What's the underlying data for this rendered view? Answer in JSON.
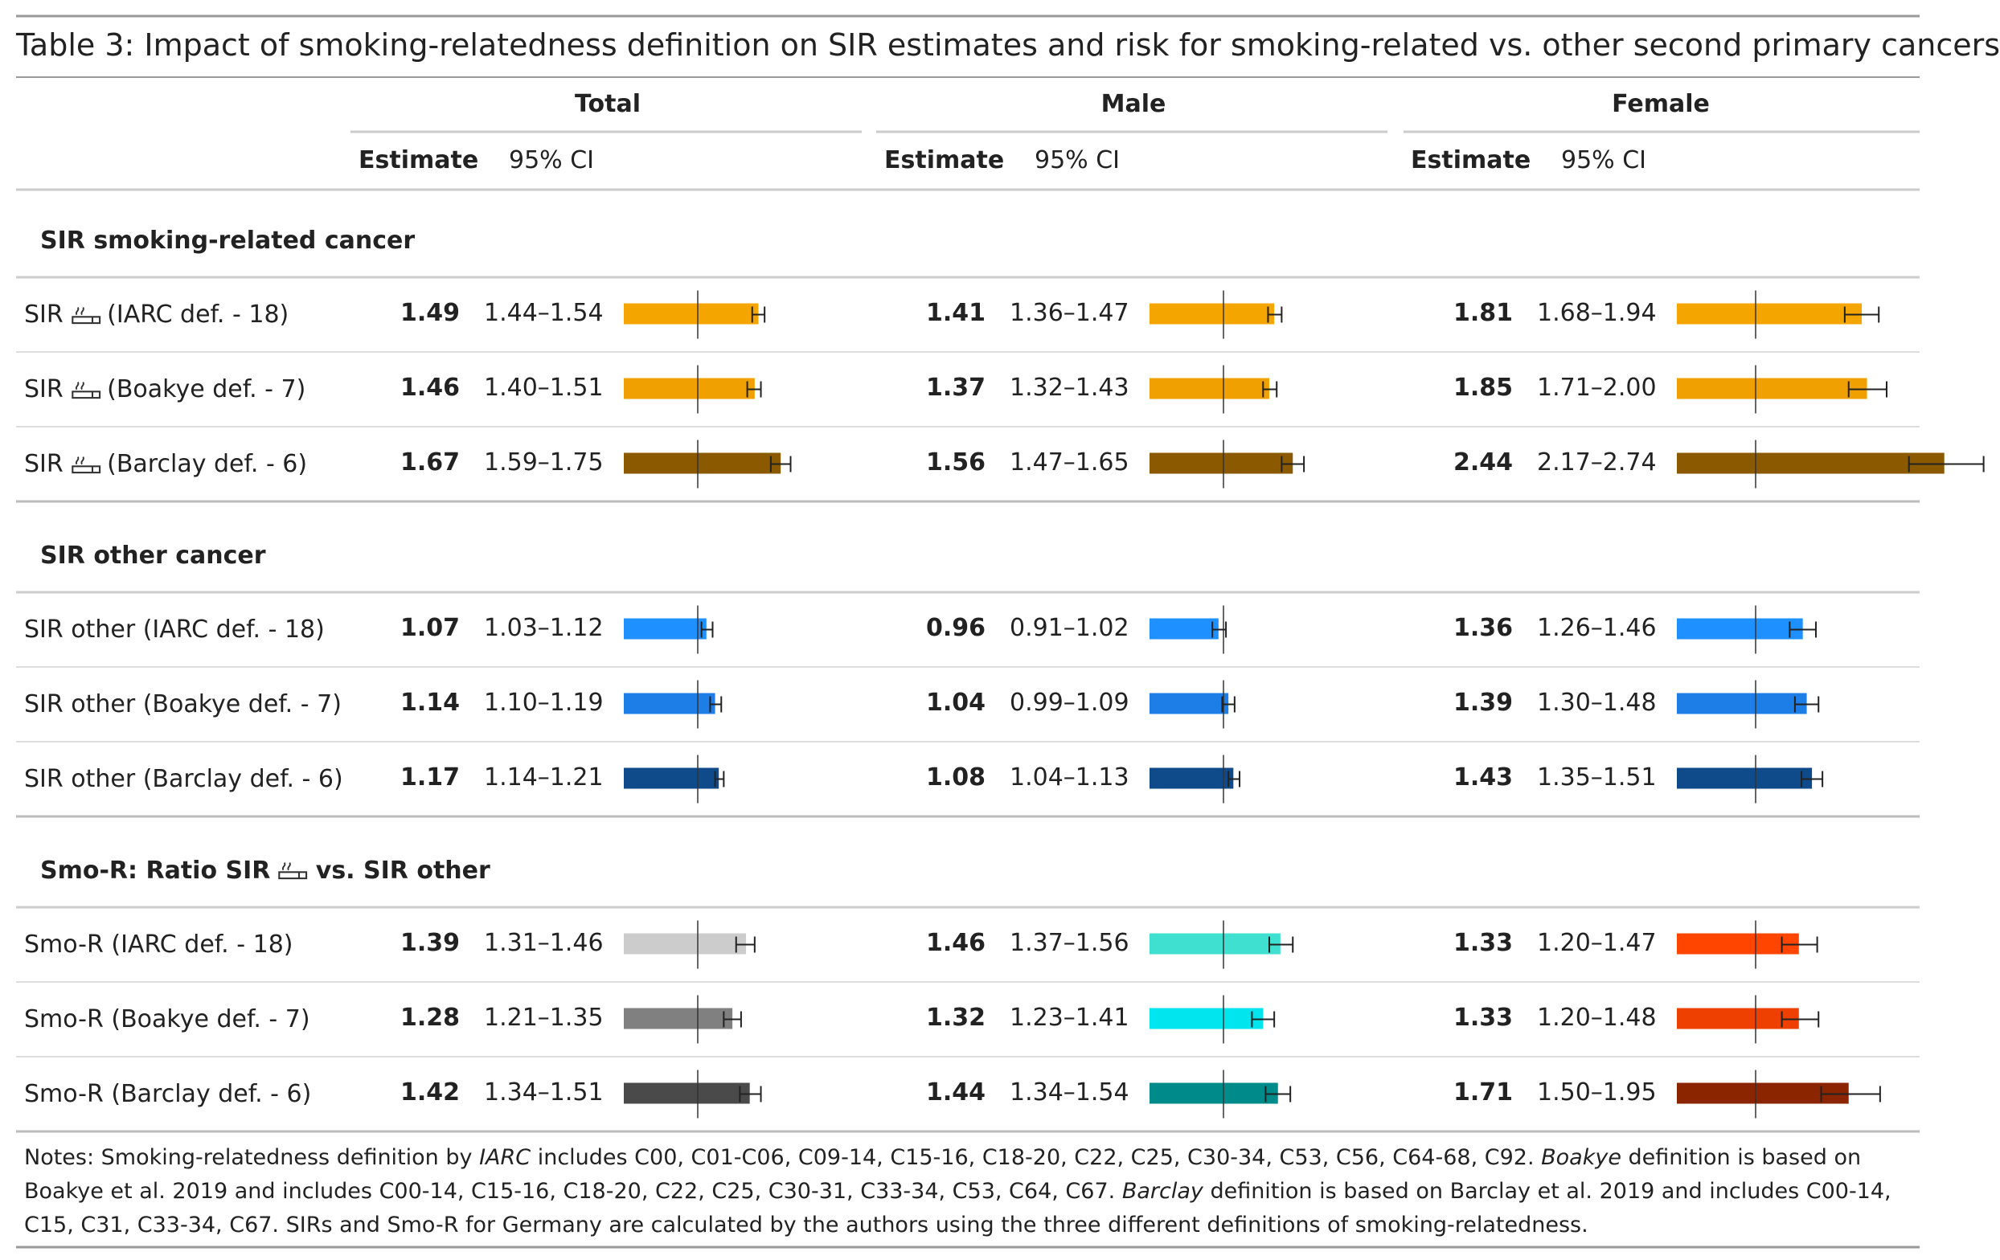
{
  "title": "Table 3: Impact of smoking-relatedness definition on SIR estimates and risk for smoking-related vs. other second primary cancers",
  "groups": [
    "Total",
    "Male",
    "Female"
  ],
  "col_headers": {
    "estimate": "Estimate",
    "ci": "95% CI"
  },
  "sections": [
    {
      "label_before": "SIR smoking-related cancer",
      "label_after": "",
      "icon": "",
      "rows": [
        {
          "label_before": "SIR",
          "icon": "cigarette-icon",
          "label_after": "(IARC def. - 18)",
          "total": {
            "est": "1.49",
            "ci": "1.44–1.54"
          },
          "male": {
            "est": "1.41",
            "ci": "1.36–1.47"
          },
          "female": {
            "est": "1.81",
            "ci": "1.68–1.94"
          }
        },
        {
          "label_before": "SIR",
          "icon": "cigarette-icon",
          "label_after": "(Boakye def. - 7)",
          "total": {
            "est": "1.46",
            "ci": "1.40–1.51"
          },
          "male": {
            "est": "1.37",
            "ci": "1.32–1.43"
          },
          "female": {
            "est": "1.85",
            "ci": "1.71–2.00"
          }
        },
        {
          "label_before": "SIR",
          "icon": "cigarette-icon",
          "label_after": "(Barclay def. - 6)",
          "total": {
            "est": "1.67",
            "ci": "1.59–1.75"
          },
          "male": {
            "est": "1.56",
            "ci": "1.47–1.65"
          },
          "female": {
            "est": "2.44",
            "ci": "2.17–2.74"
          }
        }
      ]
    },
    {
      "label_before": "SIR other cancer",
      "label_after": "",
      "icon": "",
      "rows": [
        {
          "label_before": "SIR other (IARC def. - 18)",
          "icon": "",
          "label_after": "",
          "total": {
            "est": "1.07",
            "ci": "1.03–1.12"
          },
          "male": {
            "est": "0.96",
            "ci": "0.91–1.02"
          },
          "female": {
            "est": "1.36",
            "ci": "1.26–1.46"
          }
        },
        {
          "label_before": "SIR other (Boakye def. - 7)",
          "icon": "",
          "label_after": "",
          "total": {
            "est": "1.14",
            "ci": "1.10–1.19"
          },
          "male": {
            "est": "1.04",
            "ci": "0.99–1.09"
          },
          "female": {
            "est": "1.39",
            "ci": "1.30–1.48"
          }
        },
        {
          "label_before": "SIR other (Barclay def. - 6)",
          "icon": "",
          "label_after": "",
          "total": {
            "est": "1.17",
            "ci": "1.14–1.21"
          },
          "male": {
            "est": "1.08",
            "ci": "1.04–1.13"
          },
          "female": {
            "est": "1.43",
            "ci": "1.35–1.51"
          }
        }
      ]
    },
    {
      "label_before": "Smo-R: Ratio SIR",
      "icon": "cigarette-icon",
      "label_after": "vs. SIR other",
      "rows": [
        {
          "label_before": "Smo-R (IARC def. - 18)",
          "icon": "",
          "label_after": "",
          "total": {
            "est": "1.39",
            "ci": "1.31–1.46"
          },
          "male": {
            "est": "1.46",
            "ci": "1.37–1.56"
          },
          "female": {
            "est": "1.33",
            "ci": "1.20–1.47"
          }
        },
        {
          "label_before": "Smo-R (Boakye def. - 7)",
          "icon": "",
          "label_after": "",
          "total": {
            "est": "1.28",
            "ci": "1.21–1.35"
          },
          "male": {
            "est": "1.32",
            "ci": "1.23–1.41"
          },
          "female": {
            "est": "1.33",
            "ci": "1.20–1.48"
          }
        },
        {
          "label_before": "Smo-R (Barclay def. - 6)",
          "icon": "",
          "label_after": "",
          "total": {
            "est": "1.42",
            "ci": "1.34–1.51"
          },
          "male": {
            "est": "1.44",
            "ci": "1.34–1.54"
          },
          "female": {
            "est": "1.71",
            "ci": "1.50–1.95"
          }
        }
      ]
    }
  ],
  "bar_colors": {
    "total": [
      "#F5A500",
      "#F0A000",
      "#8B5A00",
      "#1E90FF",
      "#1C7EE6",
      "#0F4A8A",
      "#CCCCCC",
      "#808080",
      "#4A4A4A"
    ],
    "male": [
      "#F5A500",
      "#F0A000",
      "#8B5A00",
      "#1E90FF",
      "#1C7EE6",
      "#0F4A8A",
      "#40E0D0",
      "#00E5EE",
      "#008B8B"
    ],
    "female": [
      "#F5A500",
      "#F0A000",
      "#8B5A00",
      "#1E90FF",
      "#1C7EE6",
      "#0F4A8A",
      "#FF4500",
      "#EE4000",
      "#8B2500"
    ]
  },
  "bar_reference": 1,
  "notes": {
    "prefix": "Notes: Smoking-relatedness definition by ",
    "iarc": "IARC",
    "part1": " includes C00, C01-C06, C09-14, C15-16, C18-20, C22, C25, C30-34, C53, C56, C64-68, C92. ",
    "boakye": "Boakye",
    "part2": " definition is based on Boakye et al. 2019 and includes C00-14, C15-16, C18-20, C22, C25, C30-31, C33-34, C53, C64, C67. ",
    "barclay": "Barclay",
    "part3": " definition is based on Barclay et al. 2019 and includes C00-14, C15, C31, C33-34, C67. SIRs and Smo-R for Germany are calculated by the authors using the three different definitions of smoking-relatedness."
  }
}
